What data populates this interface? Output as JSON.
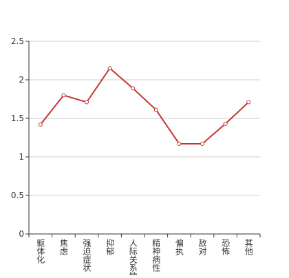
{
  "chart_data": {
    "type": "line",
    "categories": [
      "躯体化",
      "焦虑",
      "强迫症状",
      "抑郁",
      "人际关系敏感",
      "精神病性",
      "偏执",
      "敌对",
      "恐怖",
      "其他"
    ],
    "series": [
      {
        "color": "#c23531",
        "values": [
          1.42,
          1.8,
          1.71,
          2.15,
          1.89,
          1.61,
          1.17,
          1.17,
          1.43,
          1.71
        ]
      }
    ],
    "ylim": [
      0,
      2.5
    ],
    "yticks": [
      0,
      0.5,
      1,
      1.5,
      2,
      2.5
    ],
    "grid": true
  }
}
